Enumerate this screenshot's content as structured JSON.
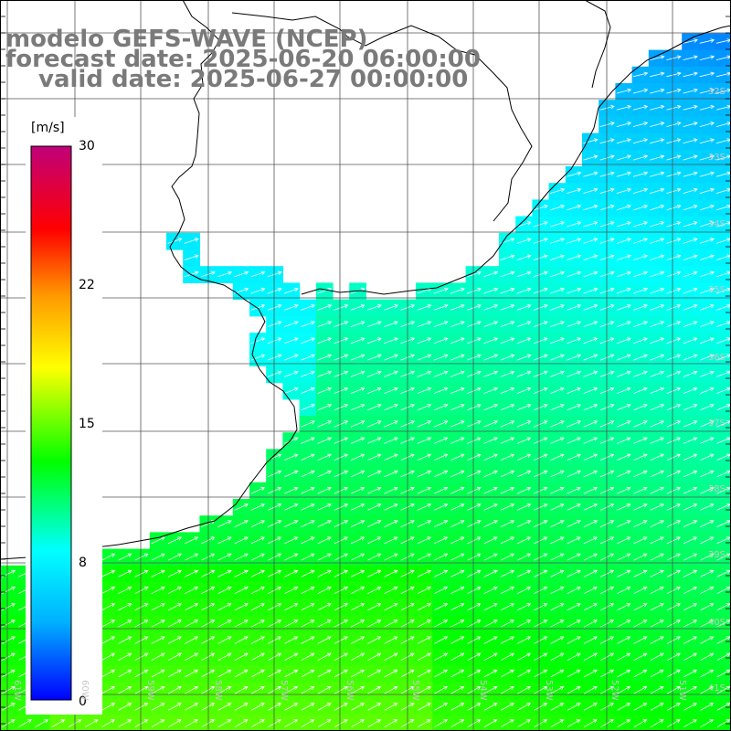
{
  "title": {
    "model": "modelo GEFS-WAVE (NCEP)",
    "forecast": "forecast date: 2025-06-20 06:00:00",
    "valid": "valid date: 2025-06-27 00:00:00"
  },
  "colorbar": {
    "unit": "[m/s]",
    "min": 0,
    "max": 30,
    "ticks": [
      "30",
      "22",
      "15",
      "8",
      "0"
    ],
    "colors": [
      "#0000ff",
      "#00b0ff",
      "#00ffff",
      "#00ff00",
      "#ffff00",
      "#ff9900",
      "#ff0000",
      "#c0007a"
    ]
  },
  "axes": {
    "lat_labels": [
      "32S",
      "33S",
      "34S",
      "35S",
      "36S",
      "37S",
      "38S",
      "39S",
      "40S",
      "41S"
    ],
    "lon_labels": [
      "61W",
      "60W",
      "59W",
      "58W",
      "57W",
      "56W",
      "55W",
      "54W",
      "53W",
      "52W",
      "51W"
    ],
    "lon_range": [
      -61.2,
      -50.6
    ],
    "lat_range": [
      -41.2,
      -31.0
    ]
  },
  "map": {
    "variable": "wind speed",
    "land_color": "#ffffff",
    "grid_color": "#555555",
    "coast_color": "#000000",
    "arrow_color": "#ffffff"
  }
}
